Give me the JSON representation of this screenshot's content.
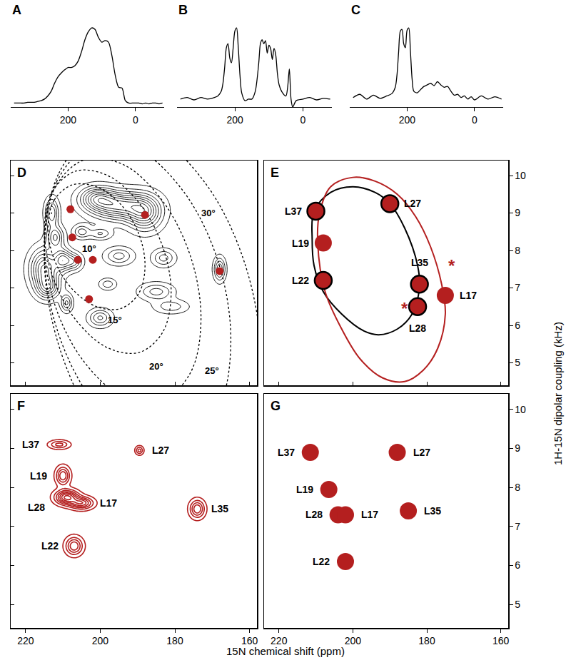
{
  "chart_data": [
    {
      "type": "line",
      "title": "A",
      "color": "#000000",
      "x": [
        360,
        350,
        340,
        330,
        320,
        310,
        300,
        290,
        280,
        270,
        260,
        250,
        240,
        230,
        220,
        210,
        200,
        190,
        180,
        170,
        160,
        150,
        140,
        130,
        120,
        110,
        100,
        90,
        80,
        70,
        60,
        50,
        40,
        30,
        20,
        10,
        0,
        -10,
        -20,
        -30,
        -40,
        -50,
        -60,
        -70,
        -80
      ],
      "values": [
        0.05,
        0.05,
        0.05,
        0.05,
        0.06,
        0.06,
        0.06,
        0.07,
        0.08,
        0.1,
        0.14,
        0.2,
        0.3,
        0.38,
        0.43,
        0.47,
        0.5,
        0.5,
        0.52,
        0.58,
        0.7,
        0.85,
        0.95,
        1.0,
        0.98,
        0.88,
        0.82,
        0.84,
        0.82,
        0.65,
        0.4,
        0.25,
        0.24,
        0.08,
        0.05,
        0.05,
        0.05,
        0.05,
        0.04,
        0.05,
        0.04,
        0.05,
        0.05,
        0.04,
        0.05
      ],
      "xlim": [
        370,
        -85
      ],
      "xticks": [
        200,
        0
      ],
      "ylim": [
        0,
        1.1
      ],
      "tick_labels": "x"
    },
    {
      "type": "line",
      "title": "B",
      "color": "#000000",
      "x": [
        360,
        340,
        320,
        300,
        280,
        260,
        250,
        240,
        235,
        230,
        225,
        220,
        215,
        210,
        205,
        200,
        195,
        190,
        185,
        180,
        170,
        160,
        150,
        140,
        130,
        125,
        120,
        115,
        110,
        105,
        100,
        95,
        90,
        85,
        80,
        75,
        70,
        60,
        50,
        45,
        40,
        35,
        30,
        20,
        0,
        -20,
        -40,
        -60,
        -80
      ],
      "values": [
        0.1,
        0.12,
        0.09,
        0.12,
        0.1,
        0.12,
        0.14,
        0.2,
        0.3,
        0.5,
        0.75,
        0.8,
        0.62,
        0.56,
        0.75,
        0.96,
        1.0,
        0.75,
        0.4,
        0.18,
        0.08,
        0.1,
        0.1,
        0.2,
        0.55,
        0.8,
        0.85,
        0.8,
        0.84,
        0.68,
        0.78,
        0.74,
        0.6,
        0.74,
        0.66,
        0.42,
        0.28,
        0.18,
        0.14,
        0.25,
        0.48,
        0.1,
        0.0,
        0.08,
        0.1,
        0.12,
        0.09,
        0.11,
        0.1
      ],
      "xlim": [
        370,
        -85
      ],
      "xticks": [
        200,
        0
      ],
      "ylim": [
        0,
        1.1
      ],
      "tick_labels": "x"
    },
    {
      "type": "line",
      "title": "C",
      "color": "#000000",
      "x": [
        360,
        340,
        320,
        300,
        280,
        260,
        245,
        235,
        230,
        225,
        220,
        215,
        210,
        205,
        200,
        195,
        190,
        185,
        180,
        170,
        160,
        150,
        140,
        130,
        120,
        110,
        100,
        90,
        80,
        70,
        60,
        50,
        40,
        30,
        20,
        10,
        0,
        -20,
        -40,
        -60,
        -80
      ],
      "values": [
        0.12,
        0.16,
        0.1,
        0.15,
        0.11,
        0.14,
        0.17,
        0.25,
        0.4,
        0.7,
        0.96,
        0.98,
        0.8,
        0.75,
        0.97,
        1.0,
        0.7,
        0.35,
        0.2,
        0.18,
        0.22,
        0.26,
        0.28,
        0.3,
        0.27,
        0.32,
        0.28,
        0.25,
        0.26,
        0.2,
        0.15,
        0.16,
        0.12,
        0.14,
        0.1,
        0.13,
        0.09,
        0.14,
        0.1,
        0.13,
        0.1
      ],
      "xlim": [
        370,
        -85
      ],
      "xticks": [
        200,
        0
      ],
      "ylim": [
        0,
        1.1
      ],
      "tick_labels": "x"
    },
    {
      "type": "contour",
      "title": "D",
      "color": "#000000",
      "peaks": [
        {
          "x": 195,
          "y": 9.2,
          "wx": 5,
          "wy": 0.25,
          "height": 1.0
        },
        {
          "x": 188,
          "y": 9.0,
          "wx": 3,
          "wy": 0.3,
          "height": 0.8
        },
        {
          "x": 201,
          "y": 9.4,
          "wx": 3,
          "wy": 0.2,
          "height": 0.7
        },
        {
          "x": 213,
          "y": 9.0,
          "wx": 1.2,
          "wy": 0.25,
          "height": 0.6
        },
        {
          "x": 212,
          "y": 8.35,
          "wx": 1.5,
          "wy": 0.2,
          "height": 0.6
        },
        {
          "x": 215,
          "y": 7.5,
          "wx": 2.5,
          "wy": 0.35,
          "height": 0.9
        },
        {
          "x": 210,
          "y": 7.75,
          "wx": 1.5,
          "wy": 0.2,
          "height": 0.7
        },
        {
          "x": 207,
          "y": 7.7,
          "wx": 1.5,
          "wy": 0.15,
          "height": 0.5
        },
        {
          "x": 214,
          "y": 7.0,
          "wx": 2,
          "wy": 0.2,
          "height": 0.6
        },
        {
          "x": 209,
          "y": 6.6,
          "wx": 1,
          "wy": 0.15,
          "height": 0.5
        },
        {
          "x": 205,
          "y": 8.5,
          "wx": 1.5,
          "wy": 0.12,
          "height": 0.4
        },
        {
          "x": 200,
          "y": 8.45,
          "wx": 2,
          "wy": 0.1,
          "height": 0.35
        },
        {
          "x": 195,
          "y": 7.85,
          "wx": 2.5,
          "wy": 0.15,
          "height": 0.4
        },
        {
          "x": 198,
          "y": 7.1,
          "wx": 1.5,
          "wy": 0.1,
          "height": 0.3
        },
        {
          "x": 200,
          "y": 6.2,
          "wx": 2,
          "wy": 0.15,
          "height": 0.5
        },
        {
          "x": 183,
          "y": 7.8,
          "wx": 2,
          "wy": 0.15,
          "height": 0.4
        },
        {
          "x": 185,
          "y": 6.9,
          "wx": 3,
          "wy": 0.15,
          "height": 0.4
        },
        {
          "x": 181,
          "y": 6.5,
          "wx": 3,
          "wy": 0.12,
          "height": 0.3
        },
        {
          "x": 168,
          "y": 7.5,
          "wx": 1,
          "wy": 0.2,
          "height": 0.6
        }
      ],
      "curves": [
        {
          "color": "#000000",
          "line_style": "dotted",
          "x": [
            214,
            212.3,
            207.5,
            201,
            194.5,
            189.7,
            188,
            189.7,
            194.5,
            201,
            207.5,
            212.3,
            214
          ],
          "y": [
            8.62,
            9.35,
            9.75,
            9.7,
            9.23,
            8.45,
            7.58,
            6.85,
            6.45,
            6.5,
            6.97,
            7.75,
            8.62
          ]
        },
        {
          "color": "#000000",
          "line_style": "dotted",
          "x": [
            215,
            212.7,
            206.5,
            198,
            189.5,
            183.3,
            181,
            183.3,
            189.5,
            198,
            206.5,
            212.7,
            215
          ],
          "y": [
            8.55,
            9.59,
            10.12,
            10.0,
            9.26,
            8.11,
            6.85,
            5.81,
            5.28,
            5.4,
            6.14,
            7.29,
            8.55
          ]
        },
        {
          "color": "#000000",
          "line_style": "dotted",
          "x": [
            215,
            212.2,
            204.5,
            194,
            183.5,
            175.8,
            173,
            175.8,
            183.5,
            194,
            204.5,
            212.2,
            215
          ],
          "y": [
            8.25,
            9.66,
            10.41,
            10.3,
            9.35,
            7.84,
            6.15,
            4.74,
            3.99,
            4.1,
            5.05,
            6.56,
            8.25
          ]
        },
        {
          "color": "#000000",
          "line_style": "dotted",
          "x": [
            215,
            211.7,
            202.5,
            190,
            177.5,
            168.3,
            165,
            168.3,
            177.5,
            190,
            202.5,
            211.7,
            215
          ],
          "y": [
            8.05,
            9.83,
            10.81,
            10.7,
            9.55,
            7.67,
            5.55,
            3.77,
            2.79,
            2.9,
            4.05,
            5.93,
            8.05
          ]
        },
        {
          "color": "#000000",
          "line_style": "dotted",
          "x": [
            215,
            211.1,
            200.5,
            186,
            171.5,
            160.9,
            157,
            160.9,
            171.5,
            186,
            200.5,
            211.1,
            215
          ],
          "y": [
            7.95,
            10.06,
            11.21,
            11.1,
            9.75,
            7.54,
            5.05,
            2.94,
            1.79,
            1.9,
            3.25,
            5.46,
            7.95
          ]
        }
      ],
      "annotations": [
        {
          "text": "10°",
          "x": 203,
          "y": 8.05,
          "color": "#000000"
        },
        {
          "text": "15°",
          "x": 196,
          "y": 6.15,
          "color": "#000000"
        },
        {
          "text": "20°",
          "x": 185,
          "y": 4.9,
          "color": "#000000"
        },
        {
          "text": "25°",
          "x": 170,
          "y": 4.8,
          "color": "#000000"
        },
        {
          "text": "30°",
          "x": 171,
          "y": 9.0,
          "color": "#000000"
        }
      ],
      "series": [
        {
          "marker": "filled",
          "color": "#b41f1f",
          "x": [
            208,
            207.5,
            206,
            202,
            203,
            188,
            168
          ],
          "y": [
            9.1,
            8.35,
            7.75,
            7.75,
            6.7,
            8.95,
            7.45
          ]
        }
      ],
      "xlim": [
        224,
        158
      ],
      "ylim": [
        4.4,
        10.4
      ],
      "xticks": [
        220,
        200,
        180,
        160
      ],
      "yticks": [
        5,
        6,
        7,
        8,
        9,
        10
      ],
      "tick_labels": false
    },
    {
      "type": "scatter",
      "title": "E",
      "curves": [
        {
          "color": "#000000",
          "line_style": "solid",
          "x": [
            211,
            210.5,
            206,
            200,
            194,
            190,
            186,
            182.5,
            182,
            184,
            188,
            193,
            197,
            203,
            208,
            210.5,
            211
          ],
          "y": [
            8.3,
            9.05,
            9.55,
            9.7,
            9.55,
            9.25,
            8.6,
            7.6,
            7.0,
            6.3,
            5.9,
            5.75,
            5.85,
            6.3,
            6.9,
            7.6,
            8.3
          ]
        },
        {
          "color": "#b41f1f",
          "line_style": "solid",
          "x": [
            209.5,
            209,
            206,
            200,
            194,
            188,
            183,
            179,
            176,
            175,
            177,
            181,
            186,
            192,
            198,
            203,
            207.5,
            209.5
          ],
          "y": [
            8.2,
            9.0,
            9.7,
            9.95,
            9.85,
            9.5,
            8.9,
            8.1,
            7.1,
            6.3,
            5.4,
            4.8,
            4.5,
            4.6,
            5.1,
            5.9,
            6.9,
            8.2
          ]
        }
      ],
      "series": [
        {
          "marker": "outlined",
          "color": "#b41f1f",
          "labels": [
            "L37",
            "L27",
            "L22",
            "L35",
            "L28"
          ],
          "x": [
            210,
            190,
            208,
            182,
            182.5
          ],
          "y": [
            9.05,
            9.25,
            7.2,
            7.1,
            6.5
          ]
        },
        {
          "marker": "filled",
          "color": "#b41f1f",
          "labels": [
            "L19",
            "L17"
          ],
          "x": [
            208,
            175
          ],
          "y": [
            8.2,
            6.8
          ]
        }
      ],
      "annotations": [
        {
          "text": "*",
          "x": 186,
          "y": 6.45,
          "color": "#b41f1f"
        },
        {
          "text": "*",
          "x": 173.3,
          "y": 7.6,
          "color": "#b41f1f"
        }
      ],
      "xlim": [
        224,
        158
      ],
      "ylim": [
        4.4,
        10.4
      ],
      "xticks": [
        220,
        200,
        180,
        160
      ],
      "yticks": [
        5,
        6,
        7,
        8,
        9,
        10
      ],
      "tick_labels": "y"
    },
    {
      "type": "contour",
      "title": "F",
      "color": "#b41f1f",
      "peaks": [
        {
          "label": "L37",
          "x": 211,
          "y": 9.1,
          "wx": 1.8,
          "wy": 0.07,
          "height": 0.4
        },
        {
          "label": "L27",
          "x": 189.5,
          "y": 8.95,
          "wx": 0.7,
          "wy": 0.07,
          "height": 0.4
        },
        {
          "label": "L19",
          "x": 210,
          "y": 8.3,
          "wx": 1.2,
          "wy": 0.15,
          "height": 0.6
        },
        {
          "label": "L28",
          "x": 209,
          "y": 7.75,
          "wx": 2,
          "wy": 0.12,
          "height": 0.9
        },
        {
          "label": "L17",
          "x": 205,
          "y": 7.6,
          "wx": 2,
          "wy": 0.1,
          "height": 0.7
        },
        {
          "label": "L35",
          "x": 174,
          "y": 7.45,
          "wx": 1.3,
          "wy": 0.15,
          "height": 0.6
        },
        {
          "label": "L22",
          "x": 207,
          "y": 6.5,
          "wx": 1.5,
          "wy": 0.15,
          "height": 0.6
        }
      ],
      "xlim": [
        224,
        158
      ],
      "ylim": [
        4.4,
        10.4
      ],
      "xticks": [
        220,
        200,
        180,
        160
      ],
      "yticks": [
        5,
        6,
        7,
        8,
        9,
        10
      ],
      "tick_labels": "x"
    },
    {
      "type": "scatter",
      "title": "G",
      "series": [
        {
          "marker": "filled",
          "color": "#b41f1f",
          "labels": [
            "L37",
            "L27",
            "L19",
            "L28",
            "L17",
            "L35",
            "L22"
          ],
          "x": [
            211.5,
            188,
            206.5,
            204,
            202,
            185,
            202
          ],
          "y": [
            8.9,
            8.9,
            7.95,
            7.3,
            7.3,
            7.4,
            6.1
          ]
        }
      ],
      "xlim": [
        224,
        158
      ],
      "ylim": [
        4.4,
        10.4
      ],
      "xticks": [
        220,
        200,
        180,
        160
      ],
      "yticks": [
        5,
        6,
        7,
        8,
        9,
        10
      ],
      "xlabel": "15N chemical shift (ppm)",
      "ylabel": "1H-15N dipolar coupling (kHz)"
    }
  ]
}
